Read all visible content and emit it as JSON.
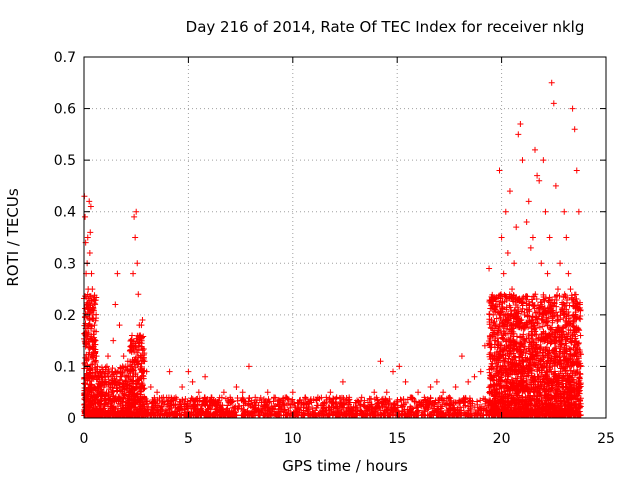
{
  "chart_data": {
    "type": "scatter",
    "title": "Day 216 of 2014, Rate Of TEC Index for receiver nklg",
    "xlabel": "GPS time / hours",
    "ylabel": "ROTI / TECUs",
    "xlim": [
      0,
      25
    ],
    "ylim": [
      0,
      0.7
    ],
    "xticks": [
      0,
      5,
      10,
      15,
      20,
      25
    ],
    "xtick_labels": [
      "0",
      "5",
      "10",
      "15",
      "20",
      "25"
    ],
    "yticks": [
      0,
      0.1,
      0.2,
      0.3,
      0.4,
      0.5,
      0.6,
      0.7
    ],
    "ytick_labels": [
      "0",
      "0.1",
      "0.2",
      "0.3",
      "0.4",
      "0.5",
      "0.6",
      "0.7"
    ],
    "grid": true,
    "marker": "plus",
    "series": [
      {
        "name": "ROTI",
        "color": "#ff0000",
        "x": [
          0.02,
          0.05,
          0.08,
          0.1,
          0.12,
          0.15,
          0.18,
          0.2,
          0.22,
          0.25,
          0.28,
          0.3,
          0.33,
          0.36,
          0.4,
          0.43,
          0.46,
          0.5,
          0.55,
          0.6,
          0.65,
          0.7,
          0.75,
          0.8,
          0.85,
          0.9,
          0.95,
          1.0,
          1.05,
          1.1,
          1.15,
          1.2,
          1.3,
          1.4,
          1.5,
          1.6,
          1.7,
          1.8,
          1.85,
          1.9,
          2.0,
          2.1,
          2.2,
          2.3,
          2.35,
          2.4,
          2.45,
          2.5,
          2.55,
          2.6,
          2.65,
          2.7,
          2.75,
          2.8,
          2.9,
          3.0,
          3.2,
          3.5,
          3.8,
          4.1,
          4.4,
          4.7,
          5.0,
          5.2,
          5.5,
          5.8,
          6.1,
          6.4,
          6.7,
          7.0,
          7.3,
          7.6,
          7.9,
          8.2,
          8.5,
          8.8,
          9.1,
          9.4,
          9.7,
          10.0,
          10.3,
          10.6,
          10.9,
          11.2,
          11.5,
          11.8,
          12.1,
          12.4,
          12.7,
          13.0,
          13.3,
          13.6,
          13.9,
          14.2,
          14.5,
          14.8,
          15.1,
          15.4,
          15.7,
          16.0,
          16.3,
          16.6,
          16.9,
          17.2,
          17.5,
          17.8,
          18.1,
          18.4,
          18.7,
          19.0,
          19.2,
          19.4,
          19.6,
          19.7,
          19.8,
          19.9,
          20.0,
          20.1,
          20.2,
          20.3,
          20.4,
          20.5,
          20.6,
          20.7,
          20.8,
          20.9,
          21.0,
          21.1,
          21.2,
          21.3,
          21.4,
          21.5,
          21.6,
          21.7,
          21.8,
          21.9,
          22.0,
          22.1,
          22.2,
          22.3,
          22.4,
          22.5,
          22.6,
          22.7,
          22.8,
          22.9,
          23.0,
          23.1,
          23.2,
          23.3,
          23.4,
          23.5,
          23.6,
          23.7,
          23.75
        ],
        "y": [
          0.43,
          0.39,
          0.34,
          0.28,
          0.22,
          0.3,
          0.35,
          0.25,
          0.18,
          0.42,
          0.32,
          0.36,
          0.41,
          0.28,
          0.25,
          0.2,
          0.23,
          0.18,
          0.15,
          0.12,
          0.1,
          0.08,
          0.09,
          0.06,
          0.07,
          0.05,
          0.06,
          0.08,
          0.07,
          0.1,
          0.12,
          0.09,
          0.08,
          0.15,
          0.22,
          0.28,
          0.18,
          0.08,
          0.1,
          0.12,
          0.1,
          0.11,
          0.13,
          0.16,
          0.28,
          0.39,
          0.35,
          0.4,
          0.3,
          0.24,
          0.18,
          0.16,
          0.18,
          0.19,
          0.11,
          0.09,
          0.06,
          0.05,
          0.04,
          0.09,
          0.04,
          0.06,
          0.09,
          0.07,
          0.05,
          0.08,
          0.04,
          0.03,
          0.05,
          0.04,
          0.06,
          0.05,
          0.1,
          0.04,
          0.03,
          0.05,
          0.04,
          0.03,
          0.04,
          0.05,
          0.03,
          0.04,
          0.03,
          0.04,
          0.03,
          0.05,
          0.04,
          0.07,
          0.04,
          0.03,
          0.04,
          0.03,
          0.05,
          0.11,
          0.05,
          0.09,
          0.1,
          0.07,
          0.04,
          0.05,
          0.04,
          0.06,
          0.07,
          0.05,
          0.04,
          0.06,
          0.12,
          0.07,
          0.08,
          0.09,
          0.14,
          0.29,
          0.2,
          0.15,
          0.1,
          0.48,
          0.35,
          0.28,
          0.4,
          0.32,
          0.44,
          0.25,
          0.3,
          0.37,
          0.55,
          0.57,
          0.5,
          0.2,
          0.38,
          0.42,
          0.33,
          0.35,
          0.52,
          0.47,
          0.46,
          0.3,
          0.5,
          0.4,
          0.28,
          0.35,
          0.65,
          0.61,
          0.45,
          0.25,
          0.3,
          0.22,
          0.4,
          0.35,
          0.28,
          0.25,
          0.6,
          0.56,
          0.48,
          0.4,
          0.22
        ]
      }
    ],
    "density_bands": [
      {
        "x_from": 0.0,
        "x_to": 0.6,
        "y_from": 0.0,
        "y_to": 0.24
      },
      {
        "x_from": 0.6,
        "x_to": 2.2,
        "y_from": 0.0,
        "y_to": 0.1
      },
      {
        "x_from": 2.2,
        "x_to": 2.9,
        "y_from": 0.0,
        "y_to": 0.16
      },
      {
        "x_from": 2.9,
        "x_to": 19.4,
        "y_from": 0.0,
        "y_to": 0.04
      },
      {
        "x_from": 19.4,
        "x_to": 23.8,
        "y_from": 0.0,
        "y_to": 0.24
      }
    ]
  }
}
